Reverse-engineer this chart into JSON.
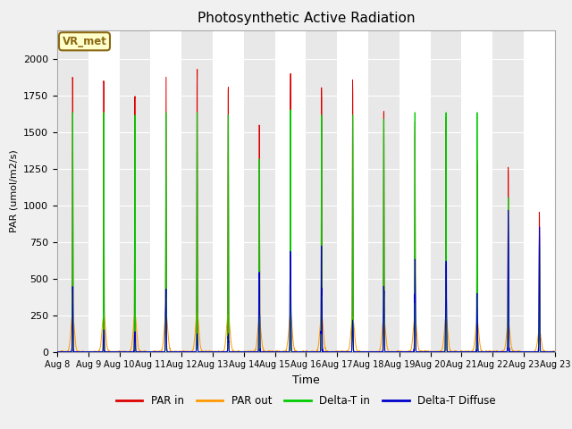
{
  "title": "Photosynthetic Active Radiation",
  "ylabel": "PAR (umol/m2/s)",
  "xlabel": "Time",
  "ylim": [
    0,
    2200
  ],
  "background_color": "#f0f0f0",
  "plot_bg_color_light": "#e8e8e8",
  "plot_bg_color_dark": "#d8d8d8",
  "annotation_text": "VR_met",
  "annotation_bg": "#ffffcc",
  "annotation_border": "#8b6914",
  "legend_labels": [
    "PAR in",
    "PAR out",
    "Delta-T in",
    "Delta-T Diffuse"
  ],
  "line_colors": [
    "#dd0000",
    "#ff9900",
    "#00cc00",
    "#0000cc"
  ],
  "x_tick_labels": [
    "Aug 8",
    "Aug 9",
    "Aug 10",
    "Aug 11",
    "Aug 12",
    "Aug 13",
    "Aug 14",
    "Aug 15",
    "Aug 16",
    "Aug 17",
    "Aug 18",
    "Aug 19",
    "Aug 20",
    "Aug 21",
    "Aug 22",
    "Aug 23",
    "Aug 23"
  ],
  "days": 16,
  "peak_heights_par_in": [
    2000,
    2000,
    1980,
    2020,
    2025,
    1950,
    1700,
    2060,
    1950,
    1950,
    1800,
    1680,
    1700,
    1420,
    1350,
    1070
  ],
  "peak_heights_par_out": [
    260,
    255,
    255,
    265,
    265,
    255,
    220,
    255,
    250,
    240,
    230,
    240,
    235,
    210,
    200,
    150
  ],
  "peak_heights_delta_in": [
    1800,
    1800,
    1780,
    1800,
    1800,
    1780,
    1450,
    1820,
    1780,
    1780,
    1750,
    1800,
    1800,
    1800,
    1160,
    800
  ],
  "peak_heights_delta_diff": [
    390,
    150,
    170,
    460,
    110,
    110,
    640,
    820,
    600,
    240,
    420,
    600,
    730,
    370,
    860,
    800
  ]
}
